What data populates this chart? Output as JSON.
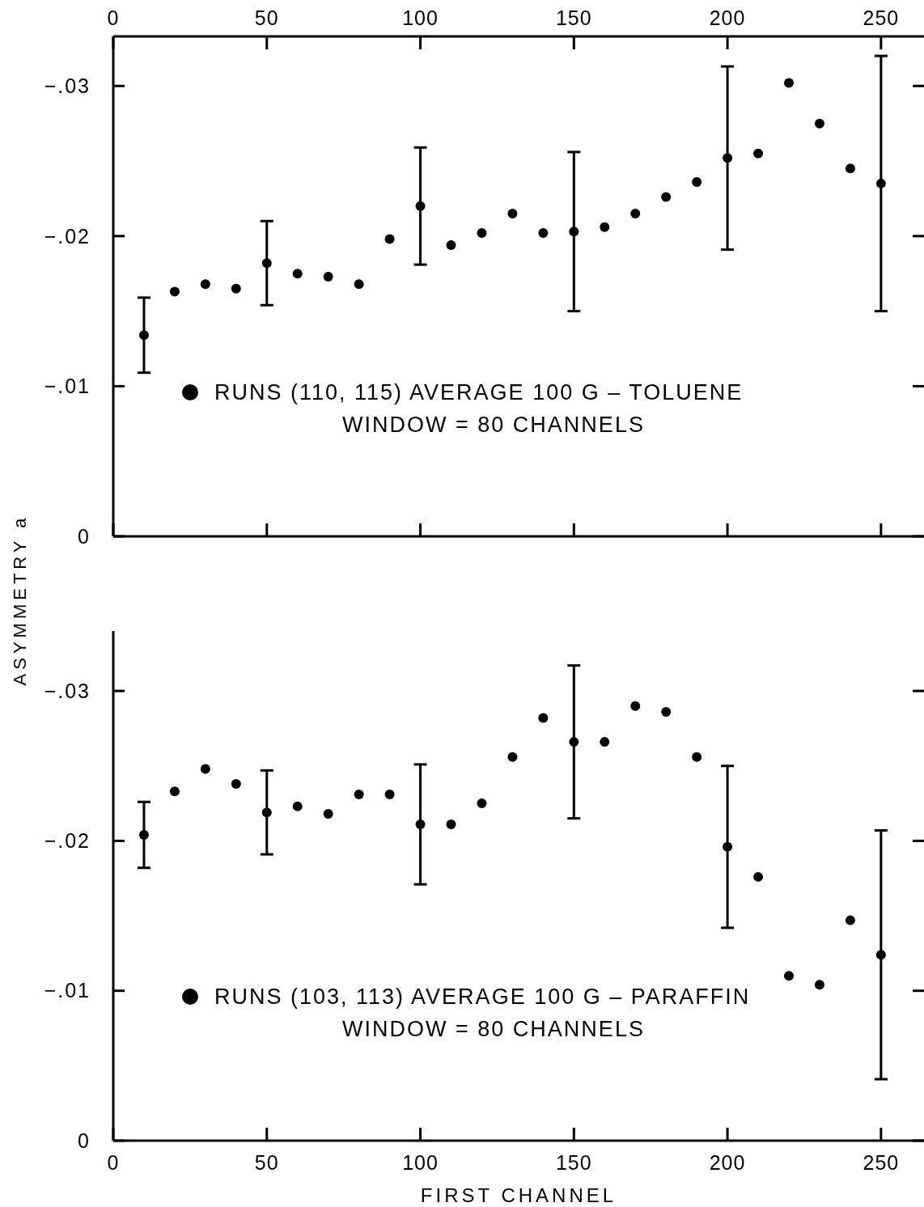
{
  "chart_data": [
    {
      "type": "scatter",
      "ylabel": "ASYMMETRY a",
      "xlim": [
        0,
        264
      ],
      "xticks": [
        0,
        50,
        100,
        150,
        200,
        250
      ],
      "ylim": [
        0,
        -0.0333
      ],
      "yticks": [
        {
          "value": 0,
          "label": "0"
        },
        {
          "value": -0.01,
          "label": "−.01"
        },
        {
          "value": -0.02,
          "label": "−.02"
        },
        {
          "value": -0.03,
          "label": "−.03"
        }
      ],
      "marker": "circle",
      "legend": "bottom",
      "grid": false,
      "x": [
        10,
        20,
        30,
        40,
        50,
        60,
        70,
        80,
        90,
        100,
        110,
        120,
        130,
        140,
        150,
        160,
        170,
        180,
        190,
        200,
        210,
        220,
        230,
        240,
        250
      ],
      "series": [
        {
          "name": "RUNS (110, 115)  AVERAGE  100 G – TOLUENE",
          "color": "#000000",
          "values": [
            -0.0134,
            -0.0163,
            -0.0168,
            -0.0165,
            -0.0182,
            -0.0175,
            -0.0173,
            -0.0168,
            -0.0198,
            -0.022,
            -0.0194,
            -0.0202,
            -0.0215,
            -0.0202,
            -0.0203,
            -0.0206,
            -0.0215,
            -0.0226,
            -0.0236,
            -0.0252,
            -0.0255,
            -0.0302,
            -0.0275,
            -0.0245,
            -0.0235
          ],
          "errors": [
            0.0025,
            null,
            null,
            null,
            0.0028,
            null,
            null,
            null,
            null,
            0.0039,
            null,
            null,
            null,
            null,
            0.0053,
            null,
            null,
            null,
            null,
            0.0061,
            null,
            null,
            null,
            null,
            0.0085
          ]
        }
      ],
      "annotations": [
        "WINDOW = 80 CHANNELS"
      ]
    },
    {
      "type": "scatter",
      "xlabel": "FIRST CHANNEL",
      "xlim": [
        0,
        264
      ],
      "xticks": [
        0,
        50,
        100,
        150,
        200,
        250
      ],
      "ylim": [
        0,
        -0.034
      ],
      "yticks": [
        {
          "value": 0,
          "label": "0"
        },
        {
          "value": -0.01,
          "label": "−.01"
        },
        {
          "value": -0.02,
          "label": "−.02"
        },
        {
          "value": -0.03,
          "label": "−.03"
        }
      ],
      "marker": "circle",
      "legend": "bottom",
      "grid": false,
      "x": [
        10,
        20,
        30,
        40,
        50,
        60,
        70,
        80,
        90,
        100,
        110,
        120,
        130,
        140,
        150,
        160,
        170,
        180,
        190,
        200,
        210,
        220,
        230,
        240,
        250
      ],
      "series": [
        {
          "name": "RUNS (103, 113)  AVERAGE  100 G – PARAFFIN",
          "color": "#000000",
          "values": [
            -0.0204,
            -0.0233,
            -0.0248,
            -0.0238,
            -0.0219,
            -0.0223,
            -0.0218,
            -0.0231,
            -0.0231,
            -0.0211,
            -0.0211,
            -0.0225,
            -0.0256,
            -0.0282,
            -0.0266,
            -0.0266,
            -0.029,
            -0.0286,
            -0.0256,
            -0.0196,
            -0.0176,
            -0.011,
            -0.0104,
            -0.0147,
            -0.0124
          ],
          "errors": [
            0.0022,
            null,
            null,
            null,
            0.0028,
            null,
            null,
            null,
            null,
            0.004,
            null,
            null,
            null,
            null,
            0.0051,
            null,
            null,
            null,
            null,
            0.0054,
            null,
            null,
            null,
            null,
            0.0083
          ]
        }
      ],
      "annotations": [
        "WINDOW = 80 CHANNELS"
      ]
    }
  ]
}
